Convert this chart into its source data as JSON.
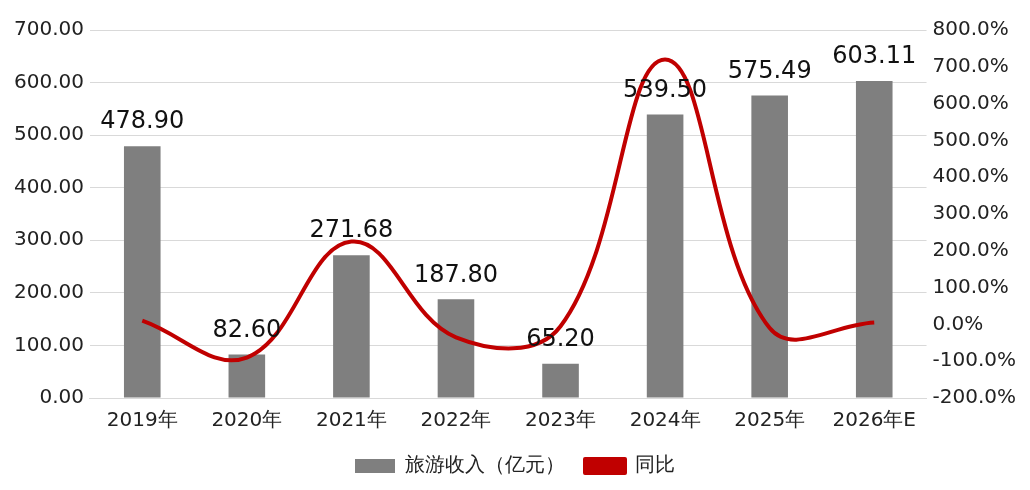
{
  "chart_data": {
    "type": "bar",
    "categories": [
      "2019年",
      "2020年",
      "2021年",
      "2022年",
      "2023年",
      "2024年",
      "2025年",
      "2026年E"
    ],
    "series": [
      {
        "name": "旅游收入（亿元）",
        "color": "#7f7f7f",
        "values": [
          478.9,
          82.6,
          271.68,
          187.8,
          65.2,
          539.5,
          575.49,
          603.11
        ],
        "value_labels": [
          "478.90",
          "82.60",
          "271.68",
          "187.80",
          "65.20",
          "539.50",
          "575.49",
          "603.11"
        ]
      },
      {
        "name": "同比",
        "type": "line",
        "axis": "y2",
        "color": "#c00000",
        "values": [
          10,
          -90,
          225,
          -35,
          -5,
          720,
          -10,
          5
        ]
      }
    ],
    "ylim": [
      0,
      700
    ],
    "yticks": [
      {
        "value": 0,
        "label": "0.00"
      },
      {
        "value": 100,
        "label": "100.00"
      },
      {
        "value": 200,
        "label": "200.00"
      },
      {
        "value": 300,
        "label": "300.00"
      },
      {
        "value": 400,
        "label": "400.00"
      },
      {
        "value": 500,
        "label": "500.00"
      },
      {
        "value": 600,
        "label": "600.00"
      },
      {
        "value": 700,
        "label": "700.00"
      }
    ],
    "y2lim": [
      -200,
      800
    ],
    "y2ticks": [
      {
        "value": -200,
        "label": "-200.0%"
      },
      {
        "value": -100,
        "label": "-100.0%"
      },
      {
        "value": 0,
        "label": "0.0%"
      },
      {
        "value": 100,
        "label": "100.0%"
      },
      {
        "value": 200,
        "label": "200.0%"
      },
      {
        "value": 300,
        "label": "300.0%"
      },
      {
        "value": 400,
        "label": "400.0%"
      },
      {
        "value": 500,
        "label": "500.0%"
      },
      {
        "value": 600,
        "label": "600.0%"
      },
      {
        "value": 700,
        "label": "700.0%"
      },
      {
        "value": 800,
        "label": "800.0%"
      }
    ],
    "grid": "y",
    "legend": "bottom",
    "marker": "none",
    "line_style": "solid"
  }
}
